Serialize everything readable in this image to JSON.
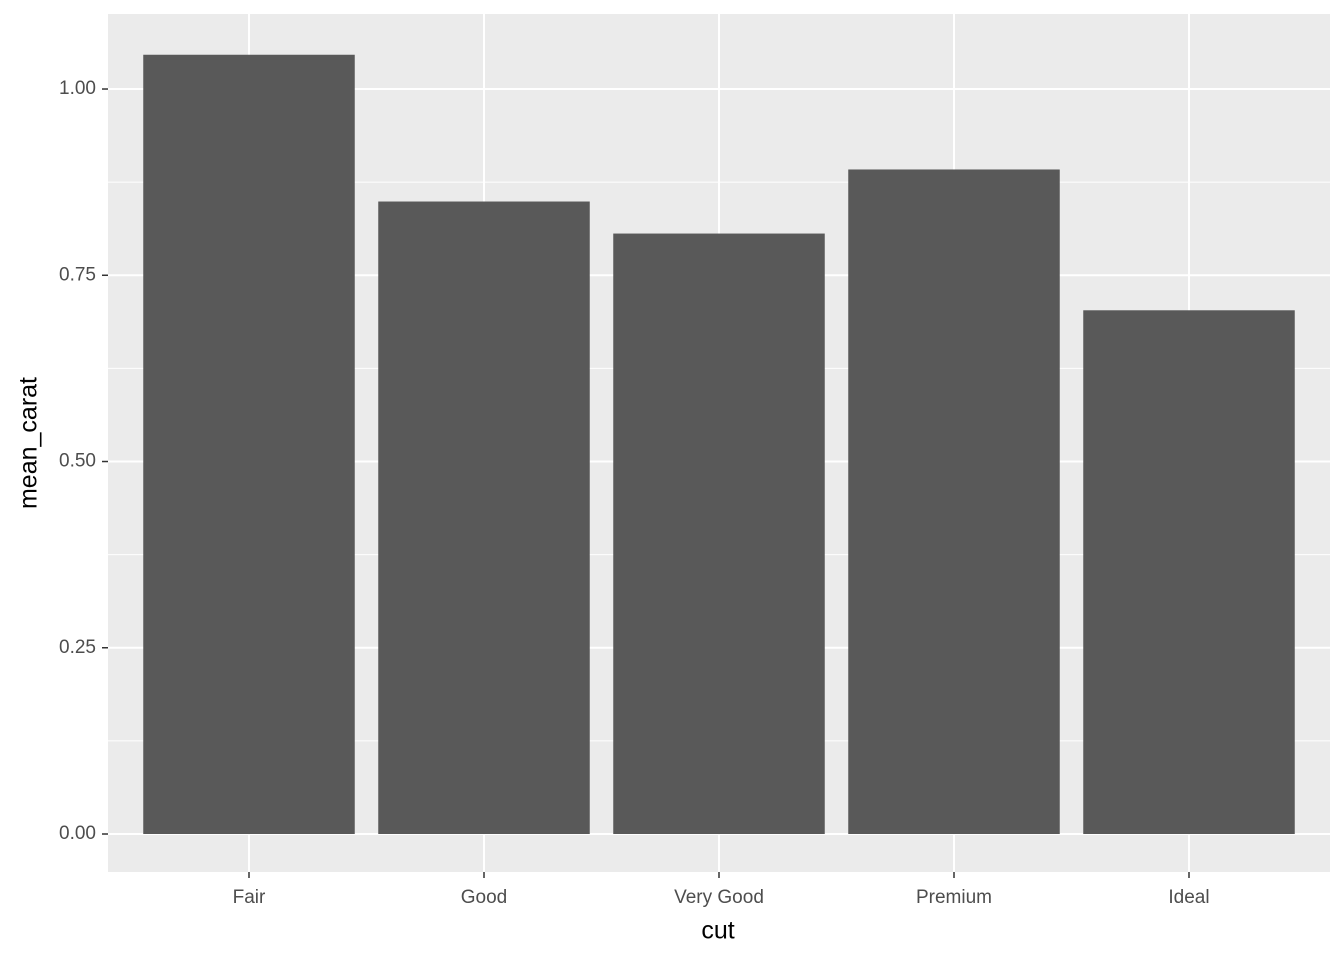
{
  "chart_data": {
    "type": "bar",
    "x_label": "cut",
    "y_label": "mean_carat",
    "categories": [
      "Fair",
      "Good",
      "Very Good",
      "Premium",
      "Ideal"
    ],
    "values": [
      1.046,
      0.849,
      0.806,
      0.892,
      0.703
    ],
    "color": "#595959",
    "ylim": [
      -0.051,
      1.1007
    ],
    "yticks": [
      {
        "value": 0,
        "label": "0.00"
      },
      {
        "value": 0.25,
        "label": "0.25"
      },
      {
        "value": 0.5,
        "label": "0.50"
      },
      {
        "value": 0.75,
        "label": "0.75"
      },
      {
        "value": 1,
        "label": "1.00"
      }
    ],
    "grid": true
  }
}
